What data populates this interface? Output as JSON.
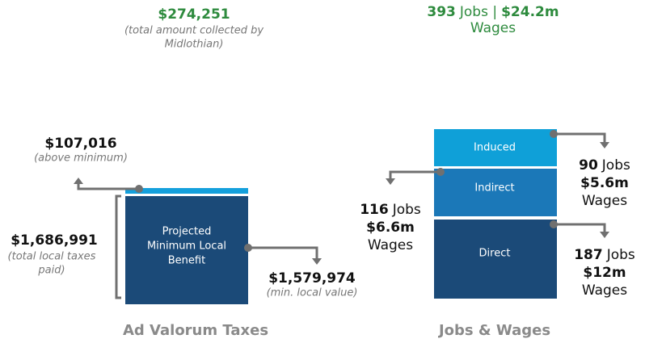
{
  "ad_valorem": {
    "total_collected": "$274,251",
    "total_collected_note_1": "(total amount collected by",
    "total_collected_note_2": "Midlothian)",
    "above_minimum": "$107,016",
    "above_minimum_note": "(above minimum)",
    "box_label": [
      "Projected",
      "Minimum Local",
      "Benefit"
    ],
    "total_paid": "$1,686,991",
    "total_paid_note_1": "(total local taxes",
    "total_paid_note_2": "paid)",
    "min_value": "$1,579,974",
    "min_value_note": "(min. local value)",
    "heading": "Ad Valorum Taxes"
  },
  "jobs_wages": {
    "total_jobs": "393",
    "total_jobs_unit": "Jobs |",
    "total_wages": "$24.2m",
    "total_wages_unit": "Wages",
    "segments": [
      {
        "label": "Induced",
        "jobs": "90",
        "jobs_unit": "Jobs",
        "wages": "$5.6m",
        "wages_unit": "Wages"
      },
      {
        "label": "Indirect",
        "jobs": "116",
        "jobs_unit": "Jobs",
        "wages": "$6.6m",
        "wages_unit": "Wages"
      },
      {
        "label": "Direct",
        "jobs": "187",
        "jobs_unit": "Jobs",
        "wages": "$12m",
        "wages_unit": "Wages"
      }
    ],
    "heading": "Jobs & Wages"
  }
}
